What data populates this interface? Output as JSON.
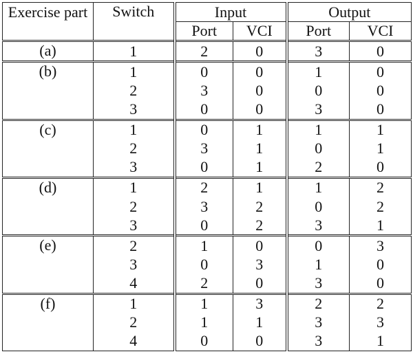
{
  "table": {
    "headers": {
      "exercise_part": "Exercise part",
      "switch": "Switch",
      "input": "Input",
      "output": "Output",
      "port": "Port",
      "vci": "VCI"
    },
    "groups": [
      {
        "part": "(a)",
        "rows": [
          {
            "switch": "1",
            "in_port": "2",
            "in_vci": "0",
            "out_port": "3",
            "out_vci": "0"
          }
        ]
      },
      {
        "part": "(b)",
        "rows": [
          {
            "switch": "1",
            "in_port": "0",
            "in_vci": "0",
            "out_port": "1",
            "out_vci": "0"
          },
          {
            "switch": "2",
            "in_port": "3",
            "in_vci": "0",
            "out_port": "0",
            "out_vci": "0"
          },
          {
            "switch": "3",
            "in_port": "0",
            "in_vci": "0",
            "out_port": "3",
            "out_vci": "0"
          }
        ]
      },
      {
        "part": "(c)",
        "rows": [
          {
            "switch": "1",
            "in_port": "0",
            "in_vci": "1",
            "out_port": "1",
            "out_vci": "1"
          },
          {
            "switch": "2",
            "in_port": "3",
            "in_vci": "1",
            "out_port": "0",
            "out_vci": "1"
          },
          {
            "switch": "3",
            "in_port": "0",
            "in_vci": "1",
            "out_port": "2",
            "out_vci": "0"
          }
        ]
      },
      {
        "part": "(d)",
        "rows": [
          {
            "switch": "1",
            "in_port": "2",
            "in_vci": "1",
            "out_port": "1",
            "out_vci": "2"
          },
          {
            "switch": "2",
            "in_port": "3",
            "in_vci": "2",
            "out_port": "0",
            "out_vci": "2"
          },
          {
            "switch": "3",
            "in_port": "0",
            "in_vci": "2",
            "out_port": "3",
            "out_vci": "1"
          }
        ]
      },
      {
        "part": "(e)",
        "rows": [
          {
            "switch": "2",
            "in_port": "1",
            "in_vci": "0",
            "out_port": "0",
            "out_vci": "3"
          },
          {
            "switch": "3",
            "in_port": "0",
            "in_vci": "3",
            "out_port": "1",
            "out_vci": "0"
          },
          {
            "switch": "4",
            "in_port": "2",
            "in_vci": "0",
            "out_port": "3",
            "out_vci": "0"
          }
        ]
      },
      {
        "part": "(f)",
        "rows": [
          {
            "switch": "1",
            "in_port": "1",
            "in_vci": "3",
            "out_port": "2",
            "out_vci": "2"
          },
          {
            "switch": "2",
            "in_port": "1",
            "in_vci": "1",
            "out_port": "3",
            "out_vci": "3"
          },
          {
            "switch": "4",
            "in_port": "0",
            "in_vci": "0",
            "out_port": "3",
            "out_vci": "1"
          }
        ]
      }
    ]
  }
}
